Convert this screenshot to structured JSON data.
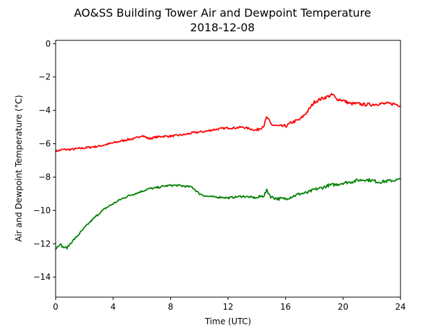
{
  "chart_data": {
    "type": "line",
    "title": "AO&SS Building Tower Air and Dewpoint Temperature",
    "subtitle": "2018-12-08",
    "xlabel": "Time (UTC)",
    "ylabel": "Air and Dewpoint Temperature (°C)",
    "xlim": [
      0,
      24
    ],
    "ylim": [
      -15.2,
      0.2
    ],
    "xticks": [
      0,
      4,
      8,
      12,
      16,
      20,
      24
    ],
    "yticks": [
      0,
      -2,
      -4,
      -6,
      -8,
      -10,
      -12,
      -14
    ],
    "ytick_labels": [
      "0",
      "−2",
      "−4",
      "−6",
      "−8",
      "−10",
      "−12",
      "−14"
    ],
    "grid": false,
    "series": [
      {
        "color": "#ff0000",
        "x": [
          0,
          0.5,
          1,
          1.5,
          2,
          2.5,
          3,
          3.5,
          4,
          4.5,
          5,
          5.5,
          6,
          6.5,
          7,
          7.5,
          8,
          8.5,
          9,
          9.5,
          10,
          10.5,
          11,
          11.5,
          12,
          12.5,
          13,
          13.5,
          14,
          14.5,
          14.7,
          15,
          15.5,
          16,
          16.5,
          17,
          17.5,
          18,
          18.5,
          19,
          19.3,
          19.5,
          20,
          20.5,
          21,
          21.5,
          22,
          22.5,
          23,
          23.5,
          24
        ],
        "y": [
          -6.45,
          -6.35,
          -6.35,
          -6.3,
          -6.25,
          -6.2,
          -6.15,
          -6.05,
          -5.95,
          -5.85,
          -5.75,
          -5.7,
          -5.5,
          -5.7,
          -5.6,
          -5.55,
          -5.55,
          -5.5,
          -5.45,
          -5.35,
          -5.3,
          -5.25,
          -5.15,
          -5.1,
          -5.05,
          -5.05,
          -5.0,
          -5.1,
          -5.2,
          -4.9,
          -4.4,
          -4.85,
          -4.95,
          -4.95,
          -4.7,
          -4.55,
          -4.1,
          -3.5,
          -3.3,
          -3.15,
          -3.05,
          -3.3,
          -3.4,
          -3.6,
          -3.6,
          -3.65,
          -3.65,
          -3.6,
          -3.6,
          -3.6,
          -3.7
        ]
      },
      {
        "color": "#008000",
        "x": [
          0,
          0.3,
          0.5,
          0.8,
          1,
          1.5,
          2,
          2.5,
          3,
          3.5,
          4,
          4.5,
          5,
          5.5,
          6,
          6.5,
          7,
          7.5,
          8,
          8.5,
          9,
          9.5,
          10,
          10.5,
          11,
          11.5,
          12,
          12.5,
          13,
          13.5,
          14,
          14.5,
          14.7,
          15,
          15.5,
          16,
          16.5,
          17,
          17.5,
          18,
          18.5,
          19,
          19.5,
          20,
          20.5,
          21,
          21.5,
          22,
          22.5,
          23,
          23.5,
          24
        ],
        "y": [
          -12.3,
          -12.0,
          -12.2,
          -12.25,
          -12.0,
          -11.55,
          -11.05,
          -10.6,
          -10.2,
          -9.85,
          -9.6,
          -9.35,
          -9.15,
          -9.0,
          -8.85,
          -8.7,
          -8.65,
          -8.55,
          -8.5,
          -8.5,
          -8.55,
          -8.6,
          -9.0,
          -9.15,
          -9.2,
          -9.2,
          -9.25,
          -9.2,
          -9.15,
          -9.2,
          -9.25,
          -9.1,
          -8.8,
          -9.2,
          -9.3,
          -9.3,
          -9.15,
          -9.0,
          -8.95,
          -8.75,
          -8.65,
          -8.5,
          -8.45,
          -8.35,
          -8.3,
          -8.2,
          -8.15,
          -8.2,
          -8.3,
          -8.25,
          -8.2,
          -8.15
        ]
      }
    ]
  }
}
